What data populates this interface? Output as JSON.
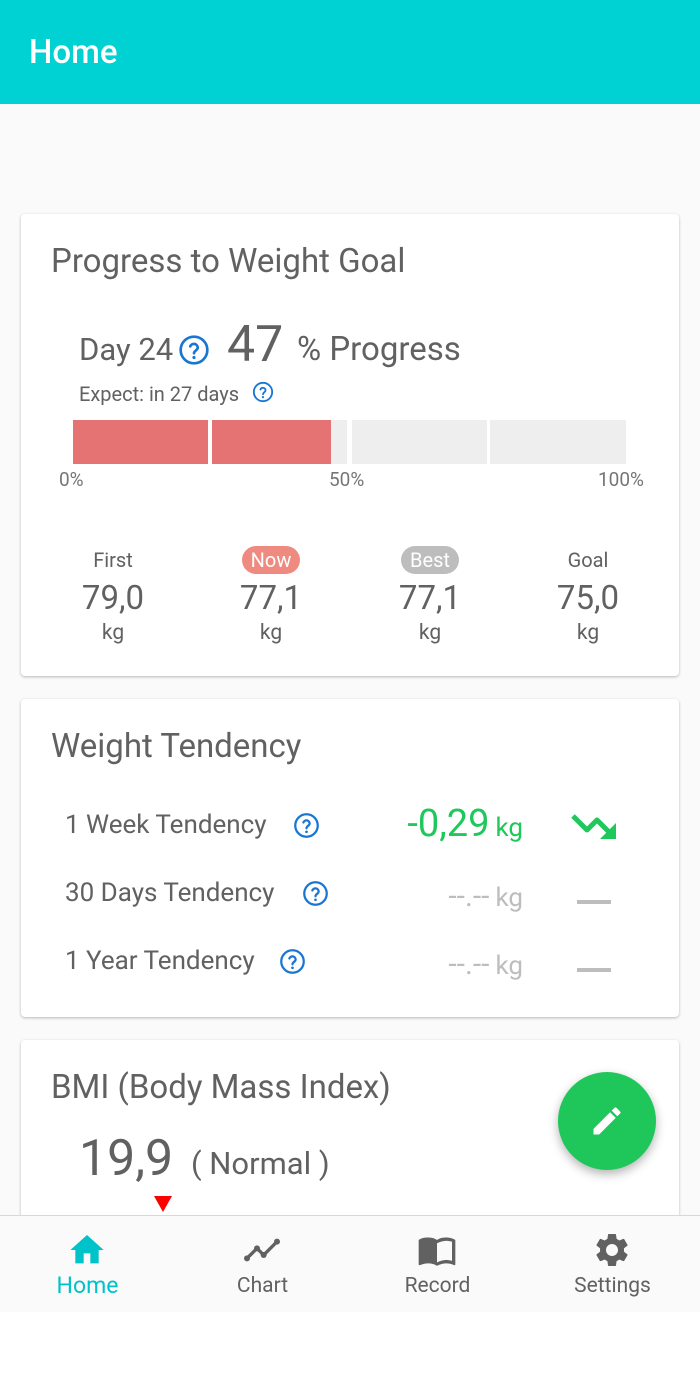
{
  "appbar": {
    "title": "Home"
  },
  "progress": {
    "title": "Progress to Weight Goal",
    "day": "Day 24",
    "percent": "47",
    "percent_label": "% Progress",
    "progress_fraction": 0.47,
    "expect": "Expect: in 27 days",
    "scale": {
      "start": "0%",
      "mid": "50%",
      "end": "100%"
    },
    "stats": [
      {
        "label": "First",
        "value": "79,0",
        "unit": "kg"
      },
      {
        "label": "Now",
        "value": "77,1",
        "unit": "kg"
      },
      {
        "label": "Best",
        "value": "77,1",
        "unit": "kg"
      },
      {
        "label": "Goal",
        "value": "75,0",
        "unit": "kg"
      }
    ],
    "colors": {
      "fill": "#e57373",
      "now_badge": "#ef8a80",
      "best_badge": "#bdbdbd"
    }
  },
  "tendency": {
    "title": "Weight Tendency",
    "rows": [
      {
        "label": "1 Week Tendency",
        "value": "-0,29",
        "unit": "kg",
        "icon": "trending-down-icon",
        "color": "#1ec85a"
      },
      {
        "label": "30 Days Tendency",
        "value": "--.--",
        "unit": "kg",
        "icon": "dash-icon",
        "color": "#bdbdbd"
      },
      {
        "label": "1 Year Tendency",
        "value": "--.--",
        "unit": "kg",
        "icon": "dash-icon",
        "color": "#bdbdbd"
      }
    ]
  },
  "bmi": {
    "title": "BMI (Body Mass Index)",
    "value": "19,9",
    "classification": "( Normal )"
  },
  "fab": {
    "icon": "edit-pencil-icon",
    "color": "#1fc75a"
  },
  "bottom_nav": {
    "items": [
      {
        "label": "Home",
        "icon": "home-icon",
        "active": true
      },
      {
        "label": "Chart",
        "icon": "chart-line-icon",
        "active": false
      },
      {
        "label": "Record",
        "icon": "book-icon",
        "active": false
      },
      {
        "label": "Settings",
        "icon": "gear-icon",
        "active": false
      }
    ]
  },
  "theme": {
    "primary": "#00d2d3",
    "active_nav": "#00c2c9",
    "help_icon": "#1976d2"
  }
}
